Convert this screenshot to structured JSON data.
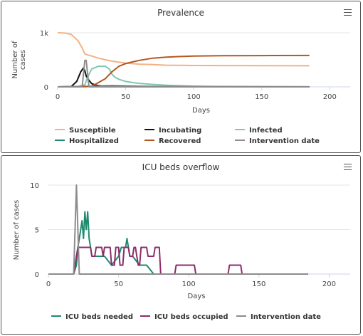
{
  "colors": {
    "susceptible": "#f4b183",
    "incubating": "#111111",
    "infected": "#7fc8b0",
    "hospitalized": "#1f8a6e",
    "recovered": "#b5571c",
    "intervention": "#8c8c8c",
    "icu_needed": "#1f8a6e",
    "icu_occupied": "#8c2d6b"
  },
  "panels": [
    {
      "title": "Prevalence",
      "menu_icon": "hamburger-menu-icon",
      "chart_data": {
        "type": "line",
        "xlabel": "Days",
        "ylabel": "Number of cases",
        "xlim": [
          0,
          215
        ],
        "ylim": [
          0,
          1000
        ],
        "x_ticks": [
          0,
          50,
          100,
          150,
          200
        ],
        "y_ticks": [
          0,
          1000
        ],
        "y_tick_labels": [
          "0",
          "1k"
        ],
        "grid": true,
        "legend_position": "bottom",
        "series": [
          {
            "name": "Susceptible",
            "color_key": "susceptible",
            "x": [
              0,
              5,
              10,
              15,
              18,
              20,
              22,
              25,
              30,
              35,
              40,
              45,
              50,
              60,
              70,
              80,
              100,
              120,
              150,
              185
            ],
            "y": [
              1000,
              995,
              970,
              850,
              720,
              610,
              590,
              570,
              530,
              500,
              475,
              455,
              440,
              420,
              410,
              400,
              395,
              393,
              392,
              390
            ]
          },
          {
            "name": "Incubating",
            "color_key": "incubating",
            "x": [
              0,
              10,
              14,
              17,
              19,
              20,
              21,
              23,
              25,
              28,
              32,
              38,
              45,
              60,
              185
            ],
            "y": [
              0,
              5,
              100,
              280,
              350,
              300,
              200,
              120,
              60,
              30,
              15,
              8,
              3,
              1,
              0
            ]
          },
          {
            "name": "Infected",
            "color_key": "infected",
            "x": [
              0,
              15,
              20,
              22,
              25,
              30,
              35,
              38,
              40,
              42,
              45,
              50,
              55,
              60,
              70,
              80,
              90,
              100,
              120,
              185
            ],
            "y": [
              0,
              5,
              40,
              180,
              330,
              380,
              380,
              330,
              230,
              180,
              140,
              100,
              80,
              65,
              45,
              30,
              20,
              12,
              5,
              2
            ]
          },
          {
            "name": "Hospitalized",
            "color_key": "hospitalized",
            "x": [
              0,
              20,
              25,
              30,
              40,
              50,
              60,
              80,
              185
            ],
            "y": [
              0,
              2,
              8,
              15,
              20,
              15,
              10,
              5,
              0
            ]
          },
          {
            "name": "Recovered",
            "color_key": "recovered",
            "x": [
              0,
              25,
              35,
              40,
              45,
              50,
              55,
              60,
              70,
              80,
              90,
              100,
              120,
              150,
              185
            ],
            "y": [
              0,
              10,
              150,
              280,
              380,
              430,
              460,
              490,
              530,
              550,
              560,
              570,
              575,
              578,
              580
            ]
          },
          {
            "name": "Intervention date",
            "color_key": "intervention",
            "x": [
              0,
              18,
              20,
              21,
              23,
              185
            ],
            "y": [
              0,
              0,
              490,
              490,
              0,
              0
            ]
          }
        ]
      }
    },
    {
      "title": "ICU beds overflow",
      "menu_icon": "hamburger-menu-icon",
      "chart_data": {
        "type": "line",
        "xlabel": "Days",
        "ylabel": "Number of cases",
        "xlim": [
          0,
          215
        ],
        "ylim": [
          0,
          10
        ],
        "x_ticks": [
          0,
          50,
          100,
          150,
          200
        ],
        "y_ticks": [
          0,
          5,
          10
        ],
        "y_tick_labels": [
          "0",
          "5",
          "10"
        ],
        "grid": true,
        "legend_position": "bottom",
        "series": [
          {
            "name": "ICU beds needed",
            "color_key": "icu_needed",
            "x": [
              0,
              18,
              20,
              21,
              22,
              23,
              24,
              25,
              26,
              27,
              28,
              29,
              30,
              31,
              33,
              35,
              40,
              45,
              50,
              52,
              54,
              55,
              56,
              57,
              58,
              60,
              65,
              70,
              75,
              78,
              80,
              185
            ],
            "y": [
              0,
              0,
              1,
              3,
              4,
              5,
              6,
              4,
              7,
              5,
              7,
              4,
              3,
              2,
              2,
              2,
              2,
              1,
              2,
              3,
              3,
              3,
              4,
              3,
              2,
              2,
              1,
              1,
              0,
              0,
              0,
              0
            ]
          },
          {
            "name": "ICU beds occupied",
            "color_key": "icu_occupied",
            "x": [
              0,
              18,
              19,
              20,
              21,
              30,
              31,
              33,
              34,
              38,
              39,
              40,
              44,
              45,
              47,
              48,
              50,
              51,
              53,
              54,
              57,
              58,
              60,
              61,
              62,
              64,
              65,
              66,
              70,
              71,
              75,
              76,
              79,
              80,
              85,
              90,
              91,
              99,
              100,
              104,
              105,
              128,
              129,
              137,
              138,
              185
            ],
            "y": [
              0,
              0,
              1,
              2,
              3,
              3,
              2,
              2,
              3,
              3,
              2,
              3,
              3,
              1,
              1,
              3,
              3,
              1,
              1,
              3,
              3,
              2,
              2,
              3,
              3,
              1,
              1,
              3,
              3,
              2,
              2,
              3,
              3,
              0,
              0,
              0,
              1,
              1,
              1,
              1,
              0,
              0,
              1,
              1,
              0,
              0
            ]
          },
          {
            "name": "Intervention date",
            "color_key": "intervention",
            "x": [
              0,
              18,
              20,
              21,
              22,
              185
            ],
            "y": [
              0,
              0,
              10,
              5,
              0,
              0
            ]
          }
        ]
      }
    }
  ]
}
